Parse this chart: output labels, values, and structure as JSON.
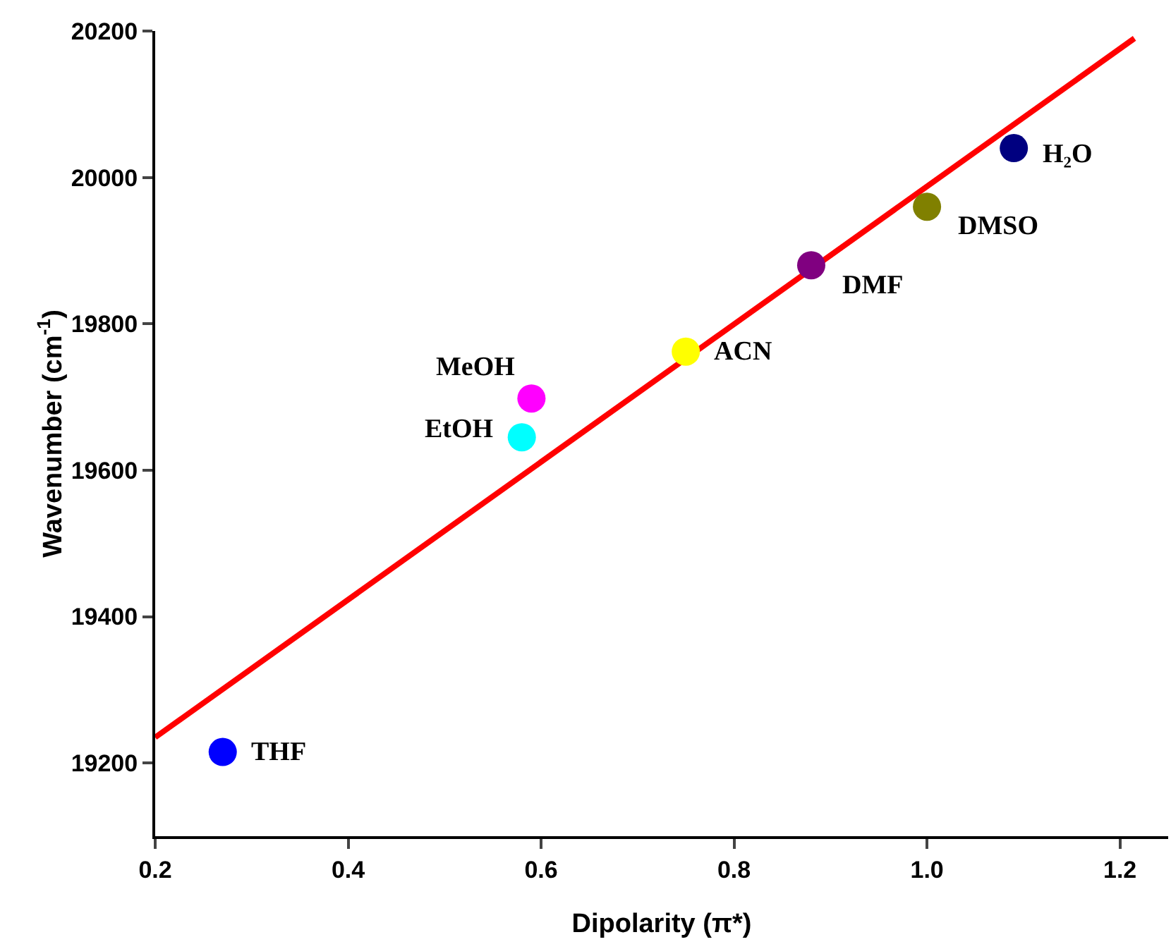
{
  "chart_data": {
    "type": "scatter",
    "xlabel": "Dipolarity (π*)",
    "ylabel": "Wavenumber (cm$^{-1}$)",
    "x": [
      0.27,
      0.58,
      0.59,
      0.75,
      0.88,
      1.0,
      1.09
    ],
    "series": [
      {
        "values": [
          19215,
          19645,
          19698,
          19762,
          19880,
          19960,
          20040
        ],
        "colors": [
          "#0000ff",
          "#00ffff",
          "#ff00ff",
          "#ffff00",
          "#800080",
          "#808000",
          "#000080"
        ],
        "marker": "circle"
      },
      {
        "type": "line",
        "x": [
          0.2,
          1.215
        ],
        "values": [
          19235,
          20190
        ],
        "color": "#ff0000",
        "line_style": "solid"
      }
    ],
    "annotations": [
      {
        "text": "THF",
        "x": 0.27,
        "y": 19215
      },
      {
        "text": "EtOH",
        "x": 0.58,
        "y": 19645
      },
      {
        "text": "MeOH",
        "x": 0.59,
        "y": 19698
      },
      {
        "text": "ACN",
        "x": 0.75,
        "y": 19762
      },
      {
        "text": "DMF",
        "x": 0.88,
        "y": 19880
      },
      {
        "text": "DMSO",
        "x": 1.0,
        "y": 19960
      },
      {
        "text": "H₂O",
        "x": 1.09,
        "y": 20040
      }
    ],
    "xlim": [
      0.2,
      1.25
    ],
    "xticks": [
      0.2,
      0.4,
      0.6,
      0.8,
      {
        "value": 1,
        "label": "1.0"
      },
      1.2
    ],
    "ylim": [
      19100,
      20200
    ],
    "yticks": [
      19200,
      19400,
      19600,
      19800,
      20000,
      20200
    ]
  }
}
